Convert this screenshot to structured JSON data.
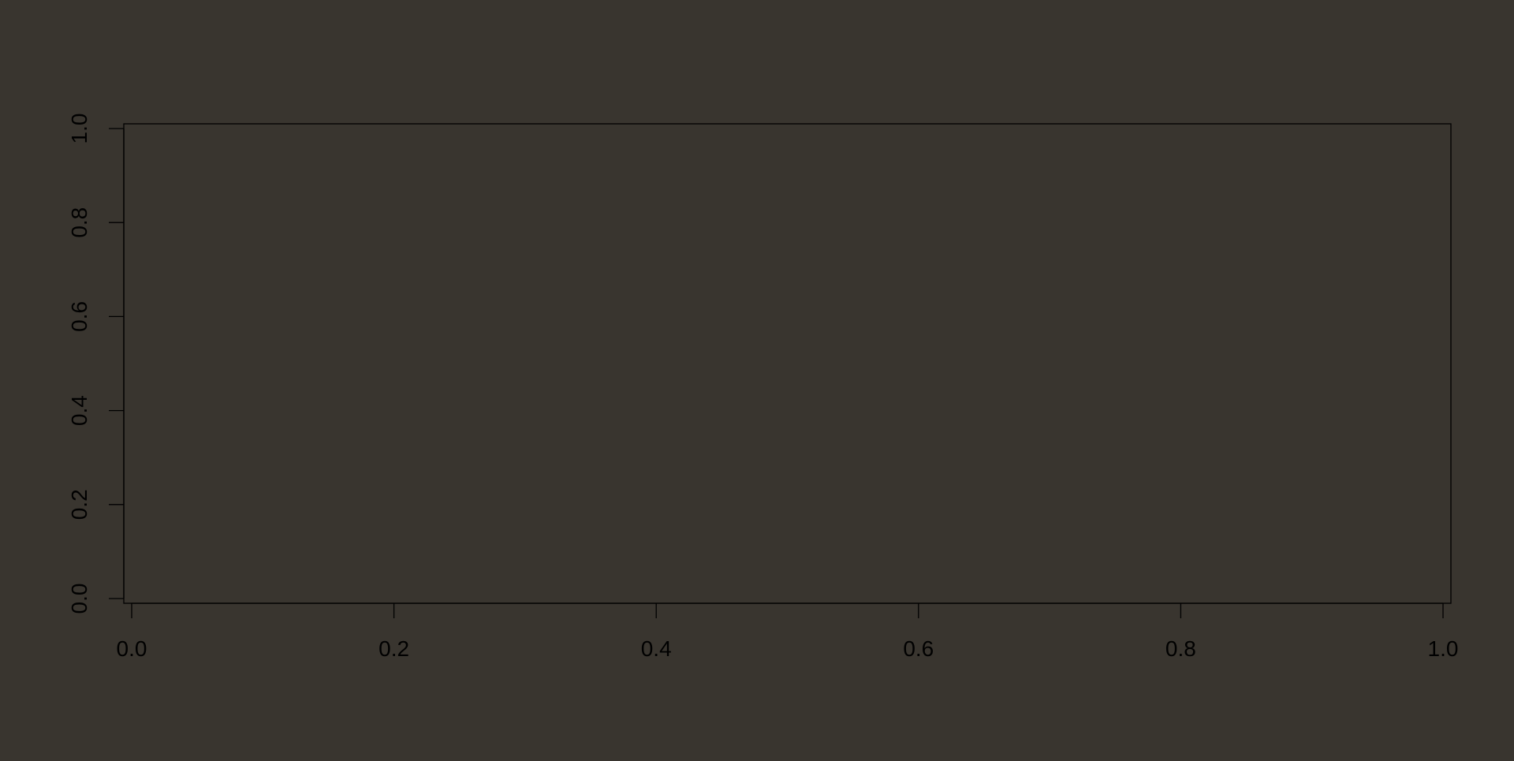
{
  "chart_data": {
    "type": "scatter",
    "title": "",
    "xlabel": "",
    "ylabel": "",
    "xlim": [
      0.0,
      1.0
    ],
    "ylim": [
      0.0,
      1.0
    ],
    "x_ticks": [
      "0.0",
      "0.2",
      "0.4",
      "0.6",
      "0.8",
      "1.0"
    ],
    "y_ticks": [
      "0.0",
      "0.2",
      "0.4",
      "0.6",
      "0.8",
      "1.0"
    ],
    "series": [],
    "grid": false,
    "colors": {
      "background": "#39352f",
      "axis": "#000000"
    }
  }
}
